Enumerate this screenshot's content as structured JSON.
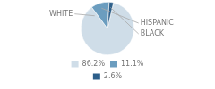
{
  "chart_data": {
    "type": "pie",
    "categories": [
      "WHITE",
      "HISPANIC",
      "BLACK"
    ],
    "values": [
      86.2,
      11.1,
      2.6
    ],
    "value_labels": [
      "86.2%",
      "11.1%",
      "2.6%"
    ],
    "colors": [
      "#cfdde8",
      "#6b9dbf",
      "#2d5f8a"
    ],
    "legend": "bottom"
  }
}
